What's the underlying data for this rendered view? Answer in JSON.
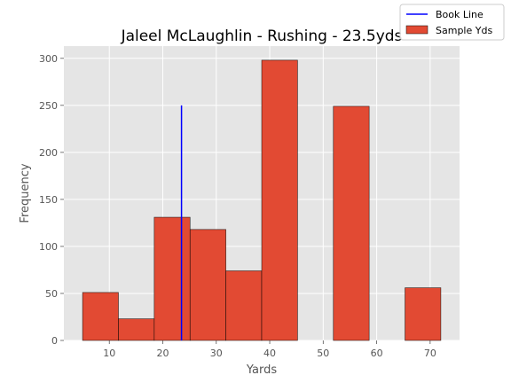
{
  "chart_data": {
    "type": "bar",
    "title": "Jaleel McLaughlin - Rushing - 23.5yds",
    "xlabel": "Yards",
    "ylabel": "Frequency",
    "xlim": [
      1.5,
      75.5
    ],
    "ylim": [
      0,
      313
    ],
    "xticks": [
      10,
      20,
      30,
      40,
      50,
      60,
      70
    ],
    "yticks": [
      0,
      50,
      100,
      150,
      200,
      250,
      300
    ],
    "grid": true,
    "legend_position": "top-right",
    "series": [
      {
        "name": "Sample Yds",
        "type": "histogram",
        "color": "#E24A33",
        "bins": [
          {
            "x0": 5.0,
            "x1": 11.7,
            "count": 51
          },
          {
            "x0": 11.7,
            "x1": 18.4,
            "count": 23
          },
          {
            "x0": 18.4,
            "x1": 25.1,
            "count": 131
          },
          {
            "x0": 25.1,
            "x1": 31.8,
            "count": 118
          },
          {
            "x0": 31.8,
            "x1": 38.5,
            "count": 74
          },
          {
            "x0": 38.5,
            "x1": 45.2,
            "count": 298
          },
          {
            "x0": 45.2,
            "x1": 51.9,
            "count": 0
          },
          {
            "x0": 51.9,
            "x1": 58.6,
            "count": 249
          },
          {
            "x0": 58.6,
            "x1": 65.3,
            "count": 0
          },
          {
            "x0": 65.3,
            "x1": 72.0,
            "count": 56
          }
        ]
      },
      {
        "name": "Book Line",
        "type": "vline",
        "color": "#0000FF",
        "x": 23.5,
        "y": [
          0,
          250
        ]
      }
    ]
  }
}
